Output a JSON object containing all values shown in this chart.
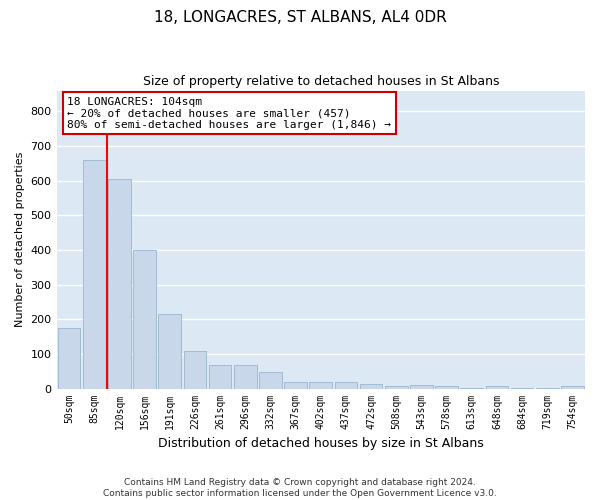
{
  "title": "18, LONGACRES, ST ALBANS, AL4 0DR",
  "subtitle": "Size of property relative to detached houses in St Albans",
  "xlabel": "Distribution of detached houses by size in St Albans",
  "ylabel": "Number of detached properties",
  "bar_labels": [
    "50sqm",
    "85sqm",
    "120sqm",
    "156sqm",
    "191sqm",
    "226sqm",
    "261sqm",
    "296sqm",
    "332sqm",
    "367sqm",
    "402sqm",
    "437sqm",
    "472sqm",
    "508sqm",
    "543sqm",
    "578sqm",
    "613sqm",
    "648sqm",
    "684sqm",
    "719sqm",
    "754sqm"
  ],
  "bar_values": [
    175,
    660,
    605,
    400,
    215,
    108,
    67,
    67,
    48,
    20,
    18,
    18,
    14,
    8,
    9,
    8,
    1,
    8,
    1,
    1,
    7
  ],
  "bar_color": "#c8d8ea",
  "bar_edge_color": "#9ab5cc",
  "plot_bg_color": "#dce9f5",
  "grid_color": "#ffffff",
  "red_line_x": 1.5,
  "annotation_line1": "18 LONGACRES: 104sqm",
  "annotation_line2": "← 20% of detached houses are smaller (457)",
  "annotation_line3": "80% of semi-detached houses are larger (1,846) →",
  "annotation_box_color": "#ffffff",
  "annotation_box_edge": "#cc0000",
  "ylim_max": 860,
  "yticks": [
    0,
    100,
    200,
    300,
    400,
    500,
    600,
    700,
    800
  ],
  "footnote1": "Contains HM Land Registry data © Crown copyright and database right 2024.",
  "footnote2": "Contains public sector information licensed under the Open Government Licence v3.0."
}
